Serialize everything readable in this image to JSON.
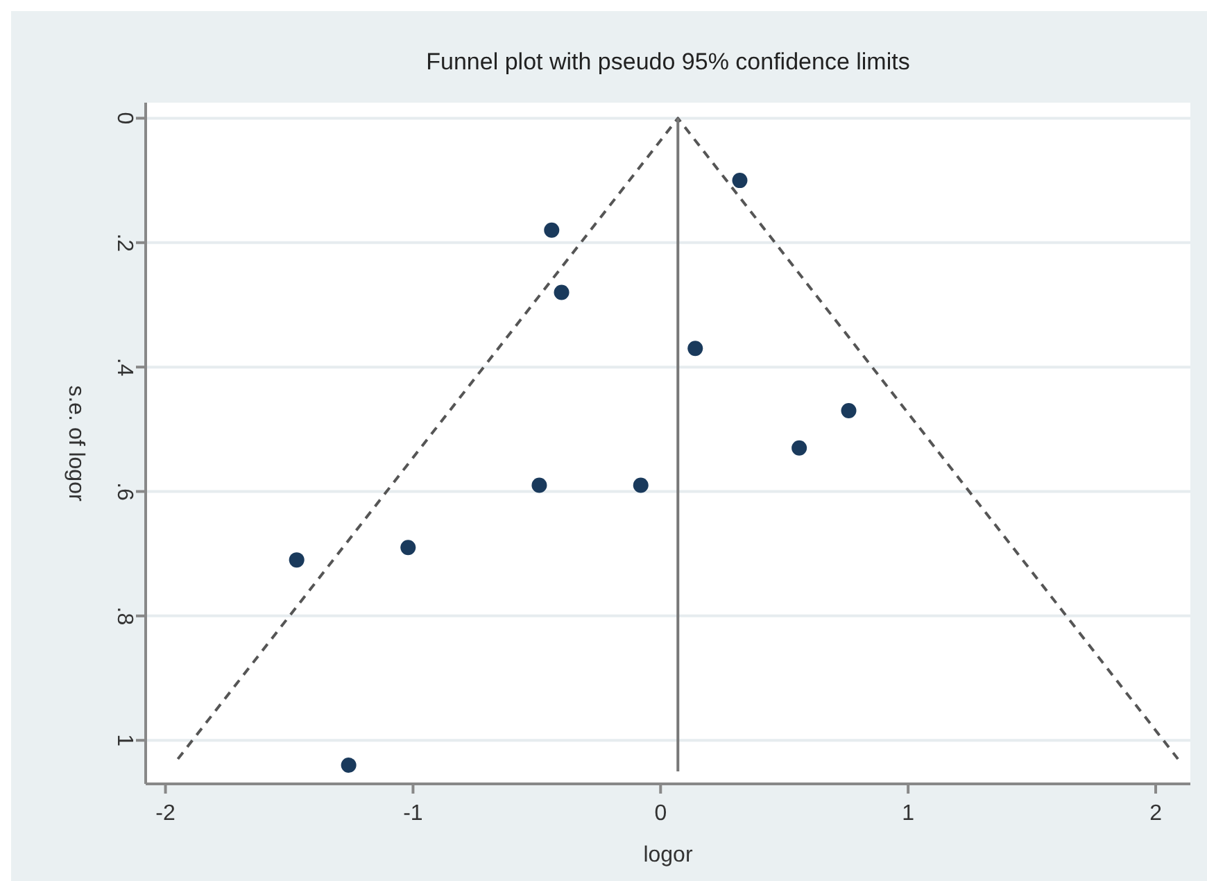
{
  "chart_data": {
    "type": "scatter",
    "title": "Funnel plot with pseudo 95% confidence limits",
    "xlabel": "logor",
    "ylabel": "s.e. of logor",
    "xlim": [
      -2.08,
      2.14
    ],
    "xticks": [
      -2,
      -1,
      0,
      1,
      2
    ],
    "ylim": [
      1.07,
      -0.025
    ],
    "yticks": [
      {
        "value": 0,
        "label": "0"
      },
      {
        "value": 0.2,
        "label": ".2"
      },
      {
        "value": 0.4,
        "label": ".4"
      },
      {
        "value": 0.6,
        "label": ".6"
      },
      {
        "value": 0.8,
        "label": ".8"
      },
      {
        "value": 1,
        "label": "1"
      }
    ],
    "grid": "y",
    "series": [
      {
        "type": "line",
        "color": "#555555",
        "line_style": "dashed",
        "marker": "none",
        "x": [
          -1.95,
          0.07,
          2.09
        ],
        "values": [
          1.03,
          0,
          1.03
        ]
      },
      {
        "type": "line",
        "color": "#777777",
        "line_style": "solid",
        "marker": "none",
        "x": [
          0.07,
          0.07
        ],
        "values": [
          0,
          1.05
        ]
      },
      {
        "color": "#1a3a5c",
        "marker": "circle",
        "x": [
          0.32,
          -0.44,
          -0.4,
          0.14,
          0.76,
          0.56,
          -0.49,
          -0.08,
          -1.02,
          -1.47,
          -1.26
        ],
        "values": [
          0.1,
          0.18,
          0.28,
          0.37,
          0.47,
          0.53,
          0.59,
          0.59,
          0.69,
          0.71,
          1.04
        ]
      }
    ]
  }
}
